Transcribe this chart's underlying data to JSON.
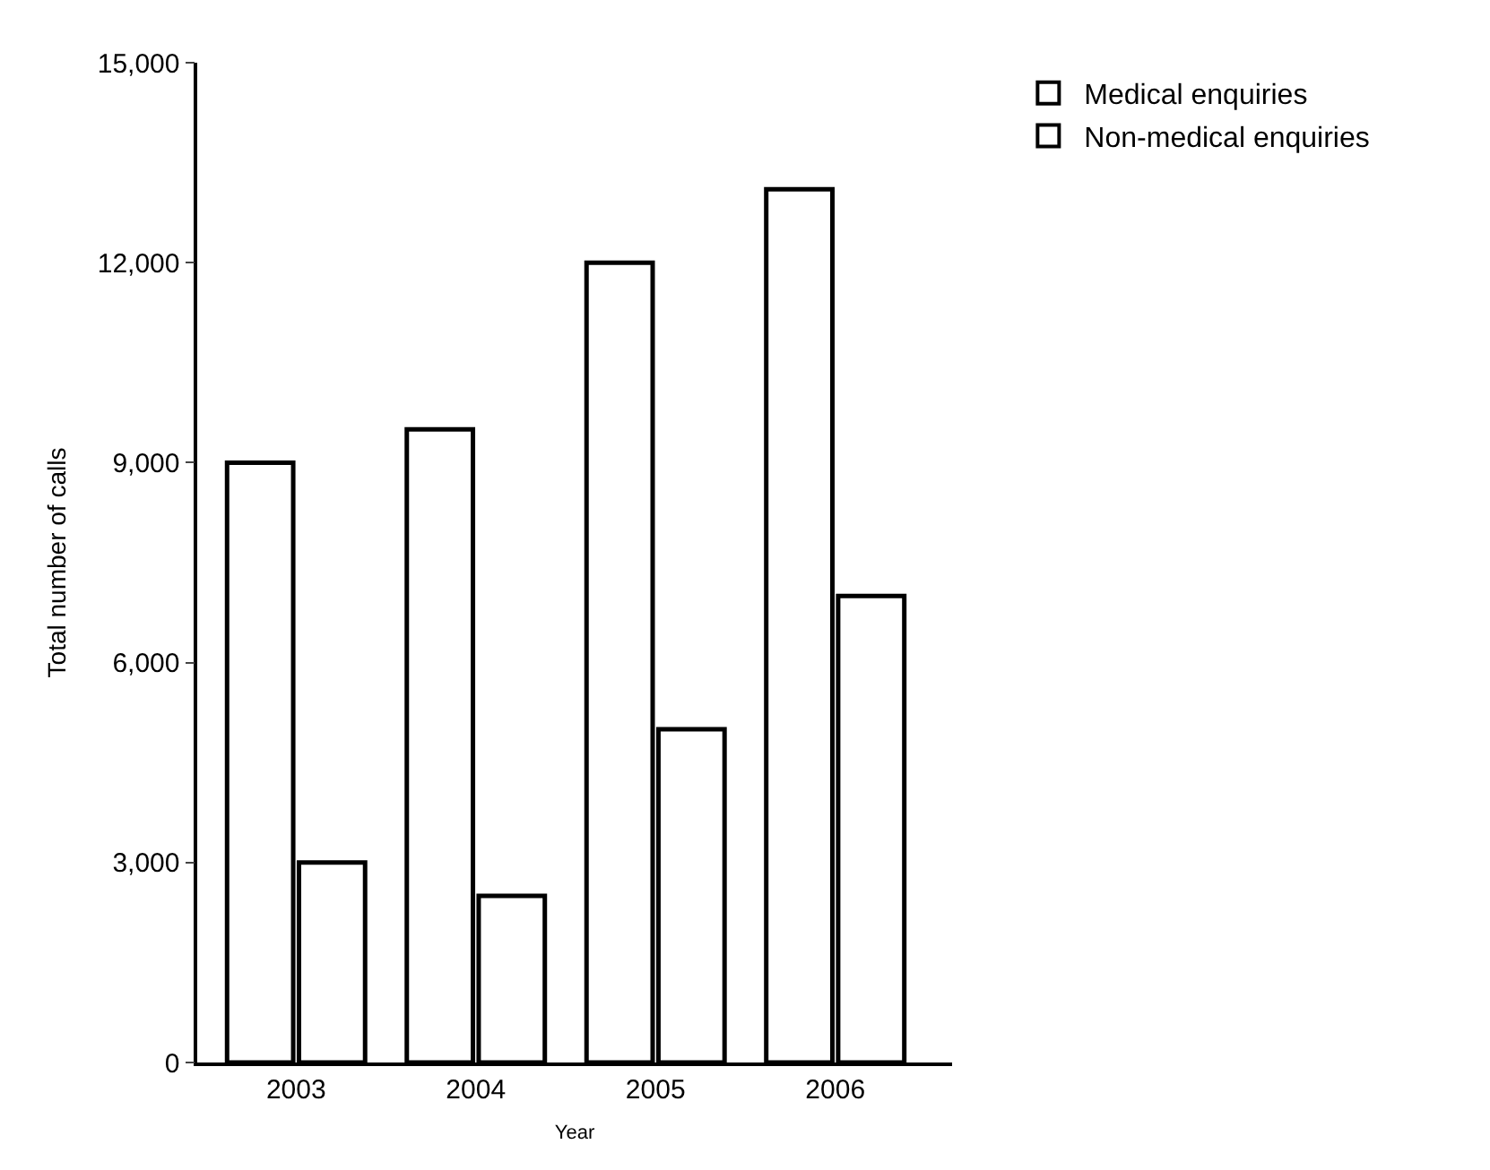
{
  "chart_data": {
    "type": "bar",
    "xlabel": "Year",
    "ylabel": "Total number of calls",
    "categories": [
      "2003",
      "2004",
      "2005",
      "2006"
    ],
    "series": [
      {
        "name": "Medical enquiries",
        "color": "#ffffff",
        "values": [
          9000,
          9500,
          12000,
          13100
        ]
      },
      {
        "name": "Non-medical enquiries",
        "color": "#ffffff",
        "values": [
          3000,
          2500,
          5000,
          7000
        ]
      }
    ],
    "ylim": [
      0,
      15000
    ],
    "yticks": [
      {
        "value": 0,
        "label": "0"
      },
      {
        "value": 3000,
        "label": "3,000"
      },
      {
        "value": 6000,
        "label": "6,000"
      },
      {
        "value": 9000,
        "label": "9,000"
      },
      {
        "value": 12000,
        "label": "12,000"
      },
      {
        "value": 15000,
        "label": "15,000"
      }
    ],
    "legend": "top right"
  }
}
